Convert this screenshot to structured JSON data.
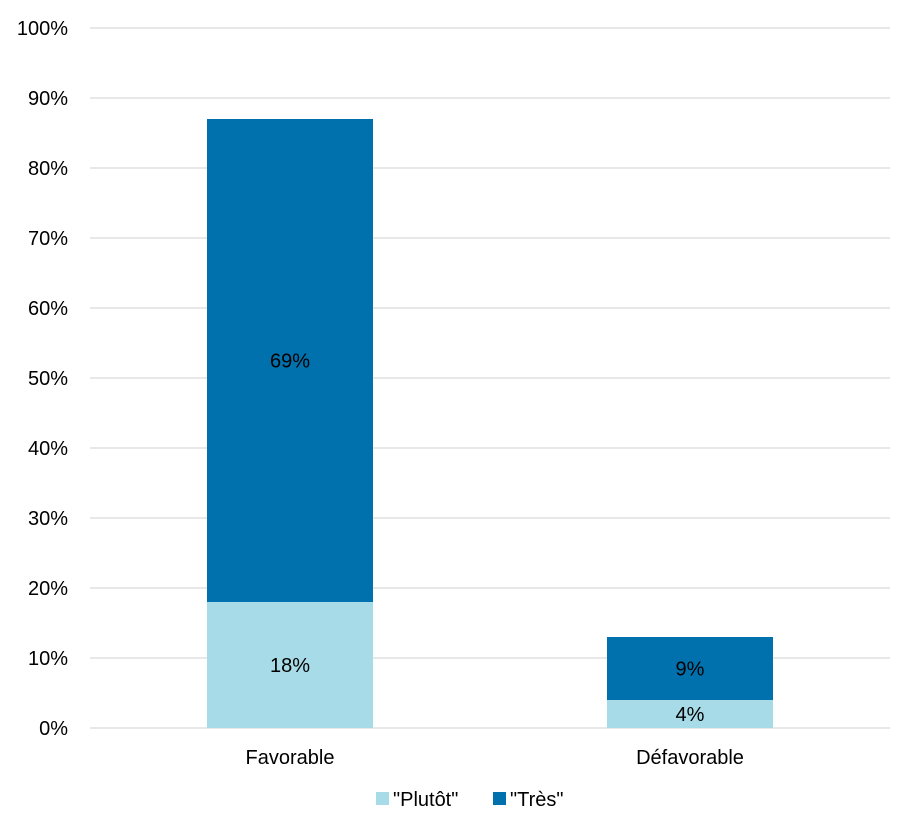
{
  "chart_data": {
    "type": "bar",
    "stacked": true,
    "title": "",
    "xlabel": "",
    "ylabel": "",
    "categories": [
      "Favorable",
      "Défavorable"
    ],
    "series": [
      {
        "name": "\"Plutôt\"",
        "values": [
          18,
          4
        ],
        "labels": [
          "18%",
          "4%"
        ],
        "color": "#a8dbe8"
      },
      {
        "name": "\"Très\"",
        "values": [
          69,
          9
        ],
        "labels": [
          "69%",
          "9%"
        ],
        "color": "#0071ad"
      }
    ],
    "ylim": [
      0,
      100
    ],
    "yticks": [
      0,
      10,
      20,
      30,
      40,
      50,
      60,
      70,
      80,
      90,
      100
    ],
    "ytick_labels": [
      "0%",
      "10%",
      "20%",
      "30%",
      "40%",
      "50%",
      "60%",
      "70%",
      "80%",
      "90%",
      "100%"
    ],
    "grid": true,
    "gridline_color": "#d9d9d9",
    "legend_position": "bottom"
  }
}
